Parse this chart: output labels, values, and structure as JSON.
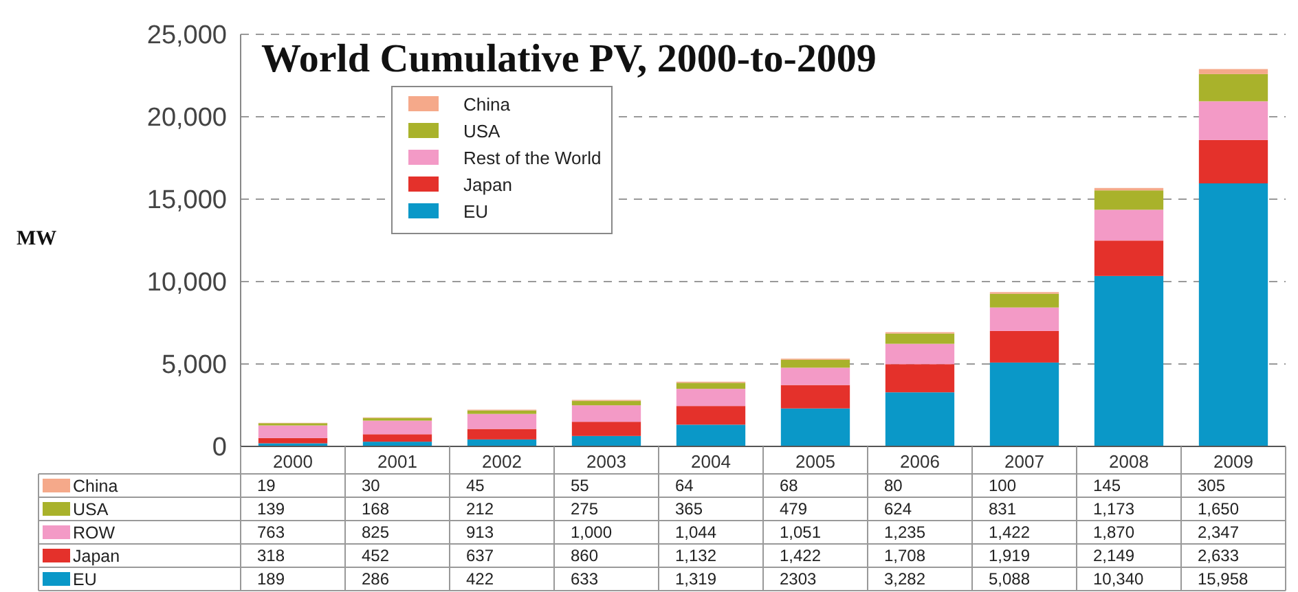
{
  "chart_data": {
    "type": "bar",
    "title": "World Cumulative PV, 2000-to-2009",
    "ylabel": "MW",
    "stacked": true,
    "grid": "y",
    "legend": "top left",
    "categories": [
      "2000",
      "2001",
      "2002",
      "2003",
      "2004",
      "2005",
      "2006",
      "2007",
      "2008",
      "2009"
    ],
    "ylim": [
      0,
      25000
    ],
    "yticks": [
      0,
      {
        "value": 5000,
        "label": "5,000"
      },
      {
        "value": 10000,
        "label": "10,000"
      },
      {
        "value": 15000,
        "label": "15,000"
      },
      {
        "value": 20000,
        "label": "20,000"
      },
      {
        "value": 25000,
        "label": "25,000"
      }
    ],
    "annotations": [
      "EU",
      "Japan",
      "ROW",
      "USA",
      "China"
    ],
    "series": [
      {
        "name": "EU",
        "color": "#0a98c8",
        "values": [
          189,
          286,
          422,
          633,
          1319,
          2303,
          3282,
          5088,
          10340,
          15958
        ],
        "value_labels": [
          "189",
          "286",
          "422",
          "633",
          "1,319",
          "2303",
          "3,282",
          "5,088",
          "10,340",
          "15,958"
        ]
      },
      {
        "name": "Japan",
        "color": "#e4312b",
        "values": [
          318,
          452,
          637,
          860,
          1132,
          1422,
          1708,
          1919,
          2149,
          2633
        ],
        "value_labels": [
          "318",
          "452",
          "637",
          "860",
          "1,132",
          "1,422",
          "1,708",
          "1,919",
          "2,149",
          "2,633"
        ]
      },
      {
        "name": "Rest of the World",
        "color": "#f39ac6",
        "values": [
          763,
          825,
          913,
          1000,
          1044,
          1051,
          1235,
          1422,
          1870,
          2347
        ],
        "value_labels": [
          "763",
          "825",
          "913",
          "1,000",
          "1,044",
          "1,051",
          "1,235",
          "1,422",
          "1,870",
          "2,347"
        ]
      },
      {
        "name": "USA",
        "color": "#a9b22b",
        "values": [
          139,
          168,
          212,
          275,
          365,
          479,
          624,
          831,
          1173,
          1650
        ],
        "value_labels": [
          "139",
          "168",
          "212",
          "275",
          "365",
          "479",
          "624",
          "831",
          "1,173",
          "1,650"
        ]
      },
      {
        "name": "China",
        "color": "#f5a98a",
        "values": [
          19,
          30,
          45,
          55,
          64,
          68,
          80,
          100,
          145,
          305
        ],
        "value_labels": [
          "19",
          "30",
          "45",
          "55",
          "64",
          "68",
          "80",
          "100",
          "145",
          "305"
        ]
      }
    ]
  }
}
